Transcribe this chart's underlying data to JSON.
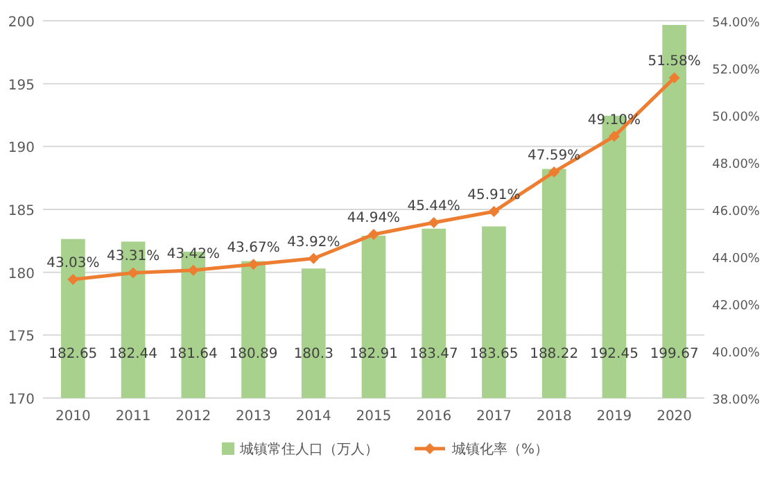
{
  "chart_data": {
    "type": "bar",
    "categories": [
      "2010",
      "2011",
      "2012",
      "2013",
      "2014",
      "2015",
      "2016",
      "2017",
      "2018",
      "2019",
      "2020"
    ],
    "series": [
      {
        "name": "城镇常住人口（万人）",
        "color": "#a9d18e",
        "values": [
          182.65,
          182.44,
          181.64,
          180.89,
          180.3,
          182.91,
          183.47,
          183.65,
          188.22,
          192.45,
          199.67
        ],
        "value_labels": [
          "182.65",
          "182.44",
          "181.64",
          "180.89",
          "180.3",
          "182.91",
          "183.47",
          "183.65",
          "188.22",
          "192.45",
          "199.67"
        ]
      },
      {
        "name": "城镇化率（%）",
        "type": "line",
        "axis": "y2",
        "color": "#ed7d31",
        "marker": "diamond",
        "values": [
          43.03,
          43.31,
          43.42,
          43.67,
          43.92,
          44.94,
          45.44,
          45.91,
          47.59,
          49.1,
          51.58
        ],
        "value_labels": [
          "43.03%",
          "43.31%",
          "43.42%",
          "43.67%",
          "43.92%",
          "44.94%",
          "45.44%",
          "45.91%",
          "47.59%",
          "49.10%",
          "51.58%"
        ]
      }
    ],
    "ylim": [
      170,
      200
    ],
    "yticks": [
      170,
      175,
      180,
      185,
      190,
      195,
      200
    ],
    "y2lim": [
      38,
      54
    ],
    "y2ticks": [
      {
        "value": 38,
        "label": "38.00%"
      },
      {
        "value": 40,
        "label": "40.00%"
      },
      {
        "value": 42,
        "label": "42.00%"
      },
      {
        "value": 44,
        "label": "44.00%"
      },
      {
        "value": 46,
        "label": "46.00%"
      },
      {
        "value": 48,
        "label": "48.00%"
      },
      {
        "value": 50,
        "label": "50.00%"
      },
      {
        "value": 52,
        "label": "52.00%"
      },
      {
        "value": 54,
        "label": "54.00%"
      }
    ],
    "grid": "y",
    "legend": "bottom"
  }
}
